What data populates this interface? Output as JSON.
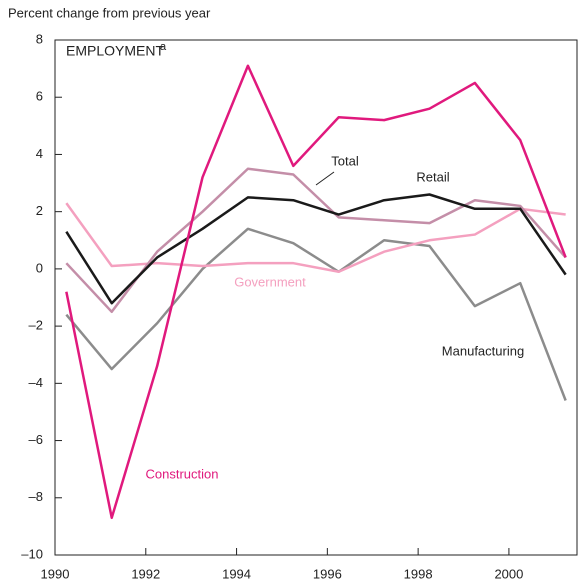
{
  "chart_data": {
    "type": "line",
    "axis_label": "Percent change from previous year",
    "title": "EMPLOYMENT",
    "title_note": "a",
    "x": [
      1990.25,
      1991.25,
      1992.25,
      1993.25,
      1994.25,
      1995.25,
      1996.25,
      1997.25,
      1998.25,
      1999.25,
      2000.25,
      2001.25
    ],
    "xlim": [
      1990,
      2001.5
    ],
    "xticks": [
      1990,
      1992,
      1994,
      1996,
      1998,
      2000
    ],
    "ylim": [
      -10,
      8
    ],
    "yticks": [
      {
        "value": -10,
        "label": "–10"
      },
      {
        "value": -8,
        "label": "–8"
      },
      {
        "value": -6,
        "label": "–6"
      },
      {
        "value": -4,
        "label": "–4"
      },
      {
        "value": -2,
        "label": "–2"
      },
      0,
      2,
      4,
      6,
      8
    ],
    "series": [
      {
        "name": "Manufacturing",
        "color": "#8c8c8c",
        "values": [
          -1.6,
          -3.5,
          -1.9,
          0.0,
          1.4,
          0.9,
          -0.1,
          1.0,
          0.8,
          -1.3,
          -0.5,
          -4.6
        ]
      },
      {
        "name": "Government",
        "color": "#f4a0bf",
        "values": [
          2.3,
          0.1,
          0.2,
          0.1,
          0.2,
          0.2,
          -0.1,
          0.6,
          1.0,
          1.2,
          2.1,
          1.9
        ]
      },
      {
        "name": "Retail",
        "color": "#c48ea8",
        "values": [
          0.2,
          -1.5,
          0.6,
          2.0,
          3.5,
          3.3,
          1.8,
          1.7,
          1.6,
          2.4,
          2.2,
          0.4
        ]
      },
      {
        "name": "Total",
        "color": "#1a1a1a",
        "values": [
          1.3,
          -1.2,
          0.4,
          1.4,
          2.5,
          2.4,
          1.9,
          2.4,
          2.6,
          2.1,
          2.1,
          -0.2
        ]
      },
      {
        "name": "Construction",
        "color": "#e0197d",
        "values": [
          -0.8,
          -8.7,
          -3.4,
          3.2,
          7.1,
          3.6,
          5.3,
          5.2,
          5.6,
          6.5,
          4.5,
          0.4
        ]
      }
    ]
  }
}
